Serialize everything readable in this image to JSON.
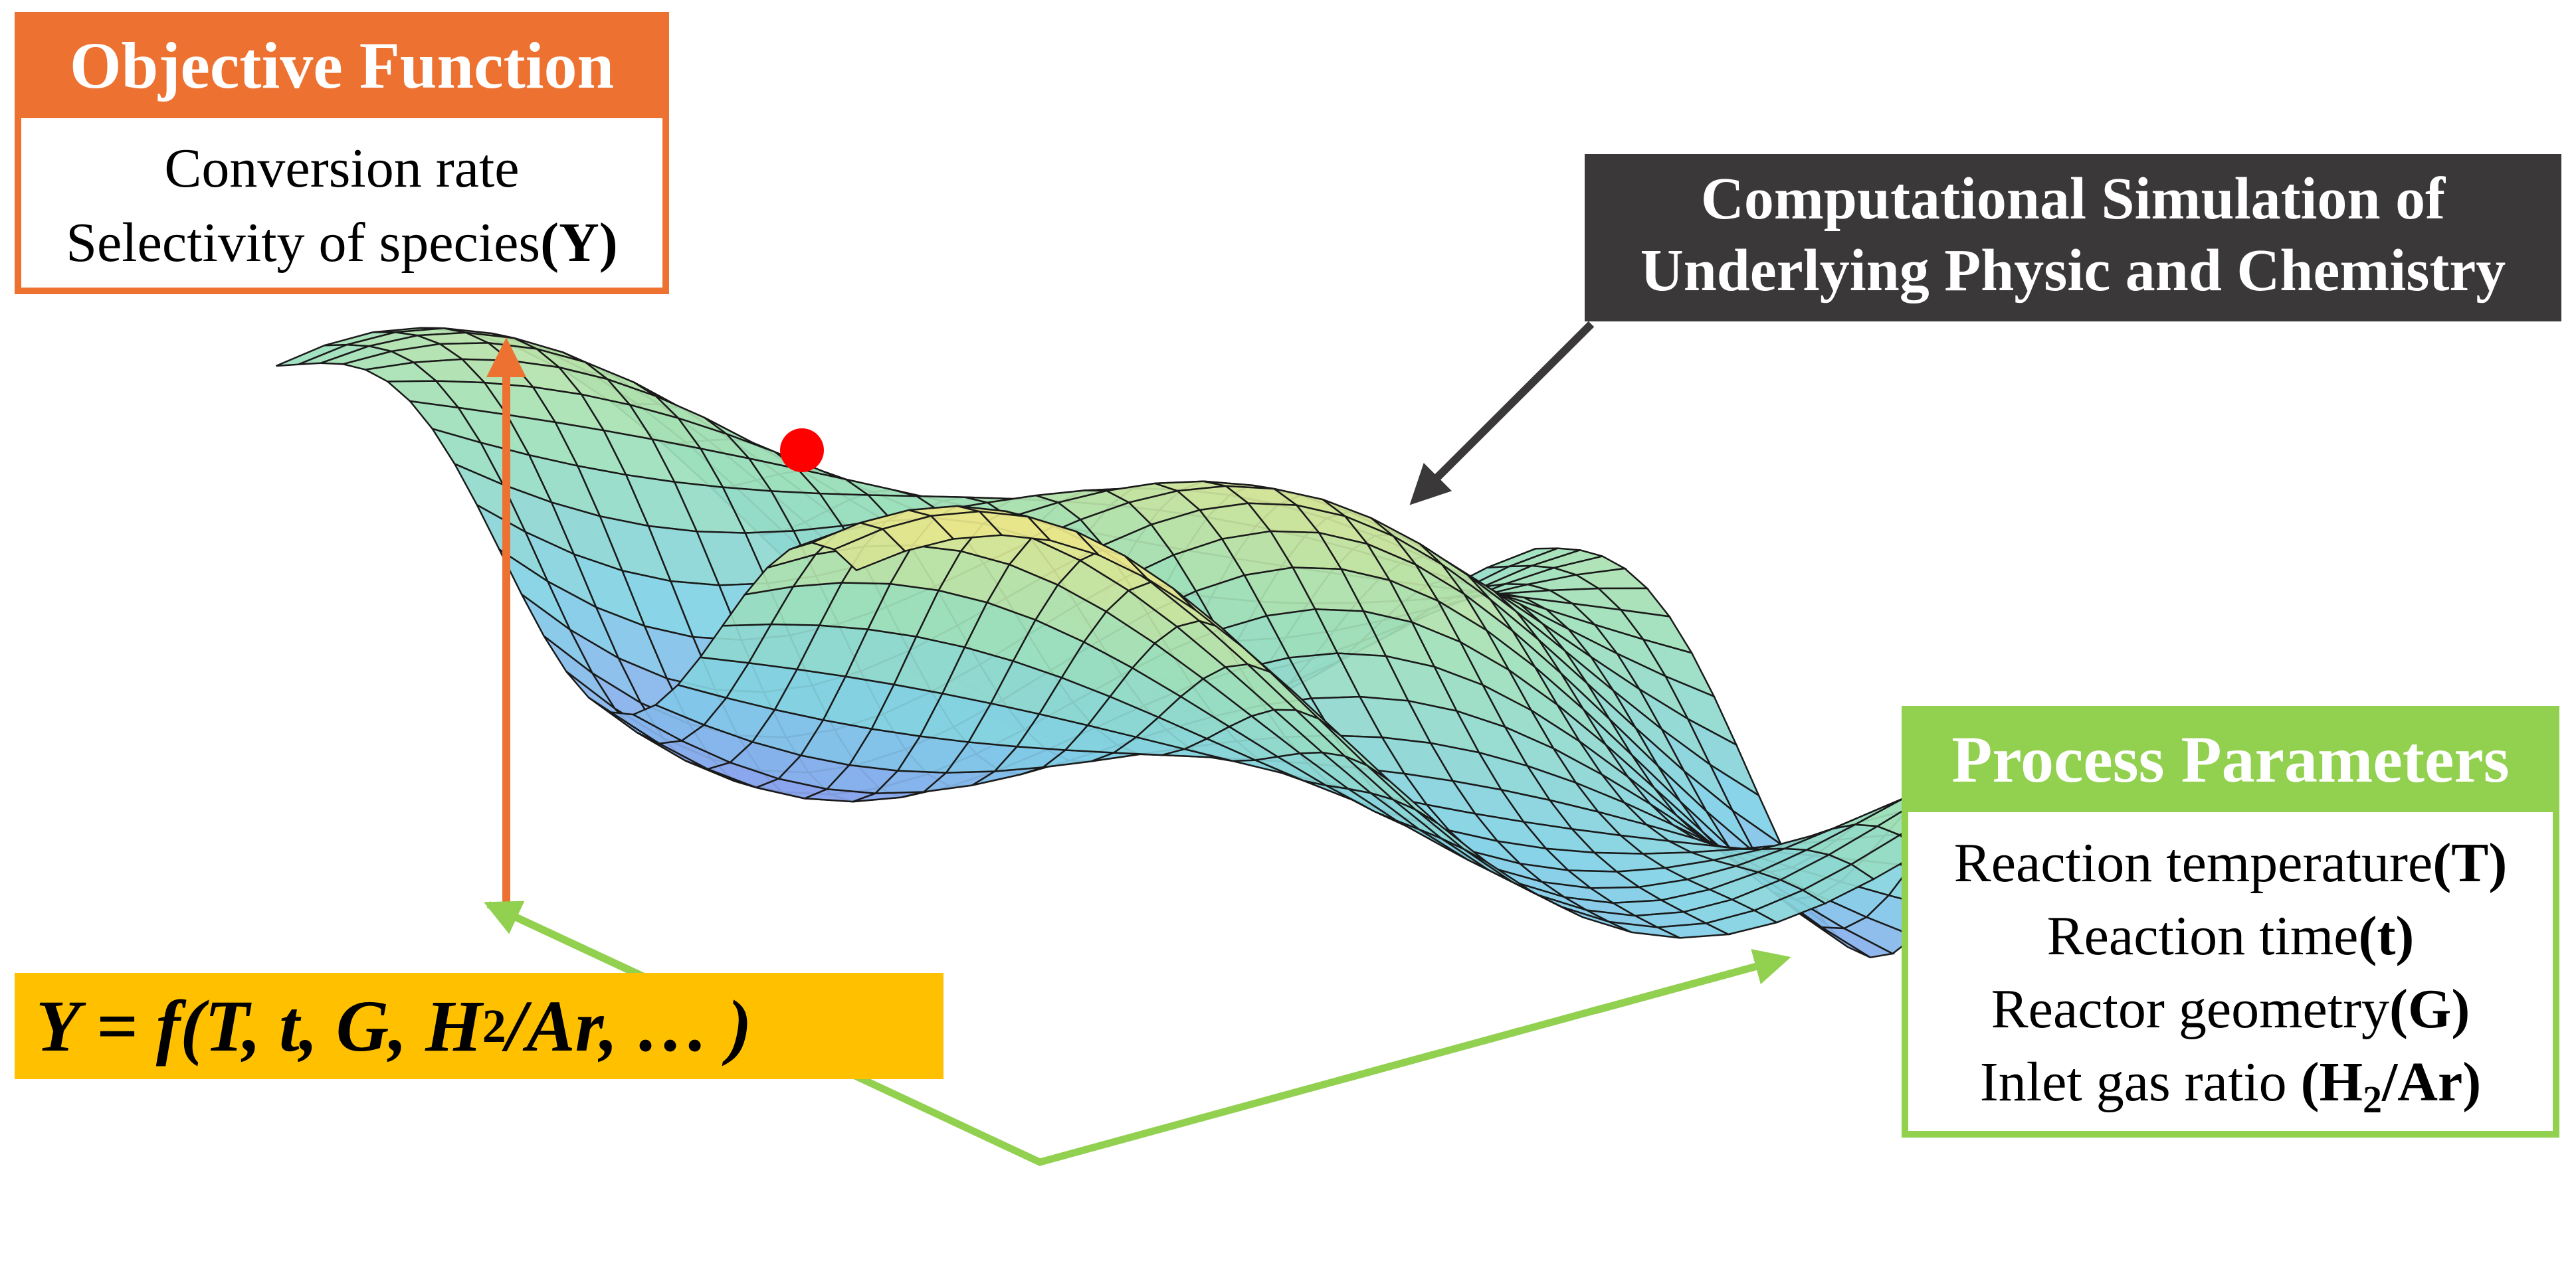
{
  "objective": {
    "title": "Objective Function",
    "line1": "Conversion rate",
    "line2_text": "Selectivity of species",
    "line2_var": "(Y)"
  },
  "simulation": {
    "line1": "Computational Simulation of",
    "line2": "Underlying Physic and Chemistry"
  },
  "process": {
    "title": "Process Parameters",
    "params": [
      {
        "text": "Reaction temperature",
        "var": "(T)"
      },
      {
        "text": "Reaction time",
        "var": "(t)"
      },
      {
        "text": "Reactor geometry",
        "var": "(G)"
      },
      {
        "text": "Inlet gas ratio ",
        "var_pre": "(H",
        "var_sub": "2",
        "var_post": "/Ar)"
      }
    ]
  },
  "equation": {
    "lhs": "Y = f(T, t, G, H",
    "sub": "2",
    "rhs": "/Ar, … )"
  },
  "colors": {
    "orange": "#ED7232",
    "green": "#92D050",
    "dark": "#3A3838",
    "yellow": "#FFC000",
    "optimum": "#FF0000"
  }
}
